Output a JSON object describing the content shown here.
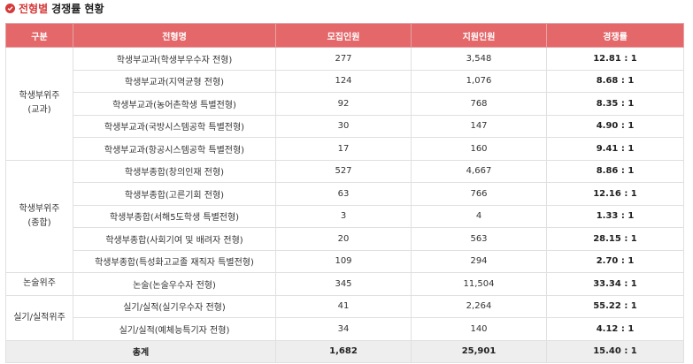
{
  "title": {
    "accent": "전형별",
    "rest": "경쟁률 현황"
  },
  "headers": [
    "구분",
    "전형명",
    "모집인원",
    "지원인원",
    "경쟁률"
  ],
  "groups": [
    {
      "line1": "학생부위주",
      "line2": "(교과)"
    },
    {
      "line1": "학생부위주",
      "line2": "(종합)"
    },
    {
      "line1": "논술위주",
      "line2": ""
    },
    {
      "line1": "실기/실적위주",
      "line2": ""
    }
  ],
  "rows": [
    {
      "name": "학생부교과(학생부우수자 전형)",
      "recruit": "277",
      "applicants": "3,548",
      "ratio": "12.81 : 1"
    },
    {
      "name": "학생부교과(지역균형 전형)",
      "recruit": "124",
      "applicants": "1,076",
      "ratio": "8.68 : 1"
    },
    {
      "name": "학생부교과(농어촌학생 특별전형)",
      "recruit": "92",
      "applicants": "768",
      "ratio": "8.35 : 1"
    },
    {
      "name": "학생부교과(국방시스템공학 특별전형)",
      "recruit": "30",
      "applicants": "147",
      "ratio": "4.90 : 1"
    },
    {
      "name": "학생부교과(항공시스템공학 특별전형)",
      "recruit": "17",
      "applicants": "160",
      "ratio": "9.41 : 1"
    },
    {
      "name": "학생부종합(창의인재 전형)",
      "recruit": "527",
      "applicants": "4,667",
      "ratio": "8.86 : 1"
    },
    {
      "name": "학생부종합(고른기회 전형)",
      "recruit": "63",
      "applicants": "766",
      "ratio": "12.16 : 1"
    },
    {
      "name": "학생부종합(서해5도학생 특별전형)",
      "recruit": "3",
      "applicants": "4",
      "ratio": "1.33 : 1"
    },
    {
      "name": "학생부종합(사회기여 및 배려자 전형)",
      "recruit": "20",
      "applicants": "563",
      "ratio": "28.15 : 1"
    },
    {
      "name": "학생부종합(특성화고교졸 재직자 특별전형)",
      "recruit": "109",
      "applicants": "294",
      "ratio": "2.70 : 1"
    },
    {
      "name": "논술(논술우수자 전형)",
      "recruit": "345",
      "applicants": "11,504",
      "ratio": "33.34 : 1"
    },
    {
      "name": "실기/실적(실기우수자 전형)",
      "recruit": "41",
      "applicants": "2,264",
      "ratio": "55.22 : 1"
    },
    {
      "name": "실기/실적(예체능특기자 전형)",
      "recruit": "34",
      "applicants": "140",
      "ratio": "4.12 : 1"
    }
  ],
  "total": {
    "label": "총계",
    "recruit": "1,682",
    "applicants": "25,901",
    "ratio": "15.40 : 1"
  }
}
